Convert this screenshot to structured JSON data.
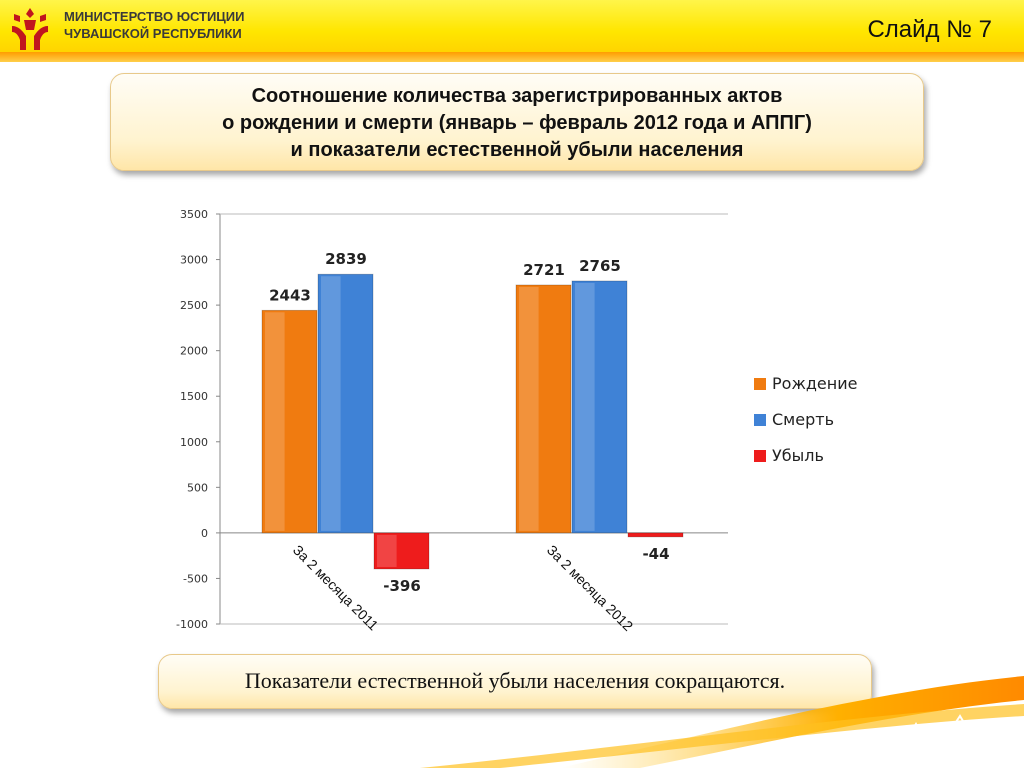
{
  "header": {
    "ministry_line1": "МИНИСТЕРСТВО ЮСТИЦИИ",
    "ministry_line2": "ЧУВАШСКОЙ РЕСПУБЛИКИ",
    "slide_label": "Слайд № 7"
  },
  "title": {
    "line1": "Соотношение количества зарегистрированных актов",
    "line2": "о рождении и смерти (январь – февраль 2012 года и АППГ)",
    "line3": "и показатели естественной убыли населения"
  },
  "note": "Показатели естественной убыли населения сокращаются.",
  "colors": {
    "birth": "#f07b10",
    "death": "#3f82d6",
    "decline": "#ee1c1c"
  },
  "chart_data": {
    "type": "bar",
    "categories": [
      "За 2 месяца 2011",
      "За 2 месяца 2012"
    ],
    "series": [
      {
        "name": "Рождение",
        "values": [
          2443,
          2721
        ]
      },
      {
        "name": "Смерть",
        "values": [
          2839,
          2765
        ]
      },
      {
        "name": "Убыль",
        "values": [
          -396,
          -44
        ]
      }
    ],
    "data_labels": [
      [
        "2443",
        "2721"
      ],
      [
        "2839",
        "2765"
      ],
      [
        "-396",
        "-44"
      ]
    ],
    "ylim": [
      -1000,
      3500
    ],
    "yticks": [
      "3500",
      "3000",
      "2500",
      "2000",
      "1500",
      "1000",
      "500",
      "0",
      "-500",
      "-1000"
    ],
    "legend_position": "right",
    "grid": false
  }
}
